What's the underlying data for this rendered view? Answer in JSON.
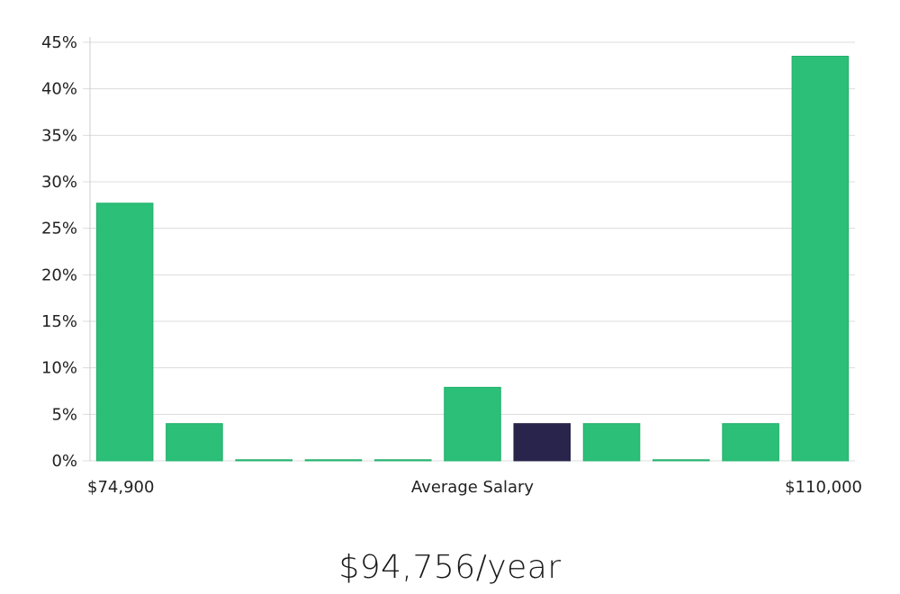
{
  "chart_data": {
    "type": "bar",
    "title": "",
    "xlabel": "",
    "ylabel": "",
    "ylim": [
      0,
      45
    ],
    "yticks": [
      0,
      5,
      10,
      15,
      20,
      25,
      30,
      35,
      40,
      45
    ],
    "ytick_format": "{v}%",
    "grid": true,
    "x_labels": {
      "left": "$74,900",
      "center": "Average Salary",
      "right": "$110,000"
    },
    "values": [
      27.7,
      4.0,
      0.1,
      0.1,
      0.1,
      7.9,
      4.0,
      4.0,
      0.1,
      4.0,
      43.5
    ],
    "highlight_index": 6,
    "colors": {
      "bar": "#2bbf78",
      "bar_stroke": "#22b06c",
      "highlight": "#28244b",
      "grid": "#dcdcdc",
      "axis": "#cccccc"
    }
  },
  "footer": {
    "salary": "$94,756/year"
  }
}
